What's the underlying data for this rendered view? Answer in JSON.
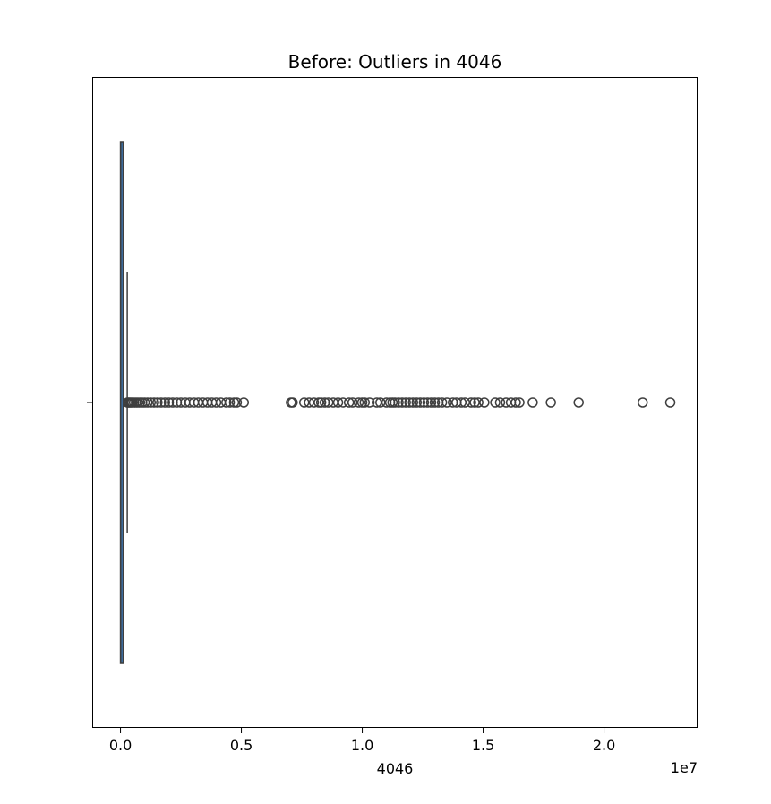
{
  "chart_data": {
    "type": "box",
    "title": "Before: Outliers in 4046",
    "xlabel": "4046",
    "ylabel": "",
    "x_scale_label": "1e7",
    "xlim": [
      -1150000,
      23850000
    ],
    "xticks": [
      0.0,
      0.5,
      1.0,
      1.5,
      2.0
    ],
    "xtick_labels": [
      "0.0",
      "0.5",
      "1.0",
      "1.5",
      "2.0"
    ],
    "x_scale_factor": 10000000,
    "grid": false,
    "orientation": "horizontal",
    "series": [
      {
        "box": {
          "whisker_low": 0,
          "q1": 0,
          "median": 8600,
          "q3": 112000,
          "whisker_high": 280000
        },
        "outliers": [
          290000,
          330000,
          380000,
          430000,
          490000,
          560000,
          640000,
          720000,
          810000,
          900000,
          1000000,
          1120000,
          1250000,
          1390000,
          1530000,
          1680000,
          1840000,
          2000000,
          2160000,
          2330000,
          2500000,
          2680000,
          2860000,
          3040000,
          3220000,
          3410000,
          3600000,
          3780000,
          3960000,
          4150000,
          4380000,
          4520000,
          4700000,
          4810000,
          5100000,
          7050000,
          7120000,
          7600000,
          7800000,
          8000000,
          8200000,
          8300000,
          8450000,
          8600000,
          8800000,
          9000000,
          9200000,
          9450000,
          9600000,
          9850000,
          10000000,
          10100000,
          10300000,
          10600000,
          10750000,
          11000000,
          11150000,
          11250000,
          11350000,
          11500000,
          11650000,
          11800000,
          11950000,
          12100000,
          12250000,
          12400000,
          12550000,
          12700000,
          12850000,
          13000000,
          13150000,
          13300000,
          13500000,
          13750000,
          13900000,
          14100000,
          14250000,
          14500000,
          14650000,
          14800000,
          15050000,
          15500000,
          15700000,
          15950000,
          16150000,
          16350000,
          16500000,
          17050000,
          17800000,
          18950000,
          21600000,
          22740000
        ]
      }
    ]
  }
}
